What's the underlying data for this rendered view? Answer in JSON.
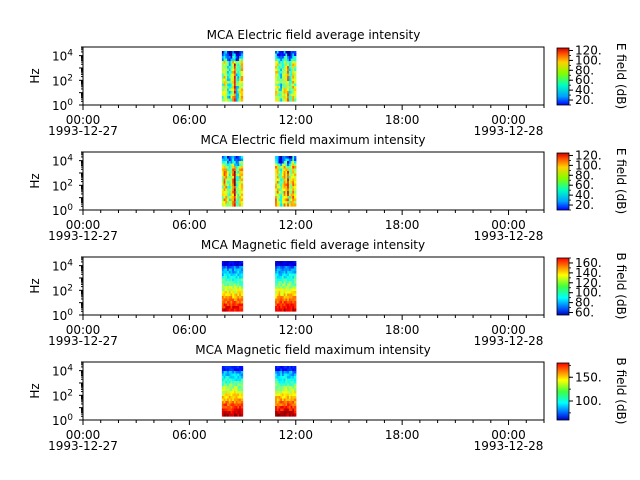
{
  "time_axis": {
    "start": "1993-12-27T00:00",
    "end": "1993-12-28T02:00",
    "ticks": [
      {
        "t": "1993-12-27T00:00",
        "label": "00:00",
        "date_label": "1993-12-27"
      },
      {
        "t": "1993-12-27T06:00",
        "label": "06:00",
        "date_label": ""
      },
      {
        "t": "1993-12-27T12:00",
        "label": "12:00",
        "date_label": ""
      },
      {
        "t": "1993-12-27T18:00",
        "label": "18:00",
        "date_label": ""
      },
      {
        "t": "1993-12-28T00:00",
        "label": "00:00",
        "date_label": "1993-12-28"
      }
    ]
  },
  "chart_data": [
    {
      "type": "heatmap",
      "title": "MCA  Electric field average intensity",
      "ylabel": "Hz",
      "yscale": "log",
      "ylim": [
        1,
        50000
      ],
      "yticks": [
        {
          "v": 1,
          "base": "10",
          "exp": "0"
        },
        {
          "v": 100,
          "base": "10",
          "exp": "2"
        },
        {
          "v": 10000,
          "base": "10",
          "exp": "4"
        }
      ],
      "colorbar": {
        "label": "E field (dB)",
        "range": [
          10,
          125
        ],
        "ticks": [
          "20.",
          "40.",
          "60.",
          "80.",
          "100.",
          "120."
        ],
        "tick_values": [
          20,
          40,
          60,
          80,
          100,
          120
        ]
      },
      "data_blocks": [
        {
          "start": "1993-12-27T07:50",
          "end": "1993-12-27T09:00"
        },
        {
          "start": "1993-12-27T10:50",
          "end": "1993-12-27T12:00"
        }
      ]
    },
    {
      "type": "heatmap",
      "title": "MCA  Electric field maximum intensity",
      "ylabel": "Hz",
      "yscale": "log",
      "ylim": [
        1,
        50000
      ],
      "yticks": [
        {
          "v": 1,
          "base": "10",
          "exp": "0"
        },
        {
          "v": 100,
          "base": "10",
          "exp": "2"
        },
        {
          "v": 10000,
          "base": "10",
          "exp": "4"
        }
      ],
      "colorbar": {
        "label": "E field (dB)",
        "range": [
          10,
          125
        ],
        "ticks": [
          "20.",
          "40.",
          "60.",
          "80.",
          "100.",
          "120."
        ],
        "tick_values": [
          20,
          40,
          60,
          80,
          100,
          120
        ]
      },
      "data_blocks": [
        {
          "start": "1993-12-27T07:50",
          "end": "1993-12-27T09:00"
        },
        {
          "start": "1993-12-27T10:50",
          "end": "1993-12-27T12:00"
        }
      ]
    },
    {
      "type": "heatmap",
      "title": "MCA  Magnetic field average intensity",
      "ylabel": "Hz",
      "yscale": "log",
      "ylim": [
        1,
        50000
      ],
      "yticks": [
        {
          "v": 1,
          "base": "10",
          "exp": "0"
        },
        {
          "v": 100,
          "base": "10",
          "exp": "2"
        },
        {
          "v": 10000,
          "base": "10",
          "exp": "4"
        }
      ],
      "colorbar": {
        "label": "B field (dB)",
        "range": [
          55,
          170
        ],
        "ticks": [
          "60.",
          "80.",
          "100.",
          "120.",
          "140.",
          "160."
        ],
        "tick_values": [
          60,
          80,
          100,
          120,
          140,
          160
        ]
      },
      "data_blocks": [
        {
          "start": "1993-12-27T07:50",
          "end": "1993-12-27T09:00"
        },
        {
          "start": "1993-12-27T10:50",
          "end": "1993-12-27T12:00"
        }
      ]
    },
    {
      "type": "heatmap",
      "title": "MCA  Magnetic field maximum intensity",
      "ylabel": "Hz",
      "yscale": "log",
      "ylim": [
        1,
        50000
      ],
      "yticks": [
        {
          "v": 1,
          "base": "10",
          "exp": "0"
        },
        {
          "v": 100,
          "base": "10",
          "exp": "2"
        },
        {
          "v": 10000,
          "base": "10",
          "exp": "4"
        }
      ],
      "colorbar": {
        "label": "B field (dB)",
        "range": [
          60,
          180
        ],
        "ticks": [
          "100.",
          "150."
        ],
        "tick_values": [
          100,
          150
        ]
      },
      "data_blocks": [
        {
          "start": "1993-12-27T07:50",
          "end": "1993-12-27T09:00"
        },
        {
          "start": "1993-12-27T10:50",
          "end": "1993-12-27T12:00"
        }
      ]
    }
  ]
}
